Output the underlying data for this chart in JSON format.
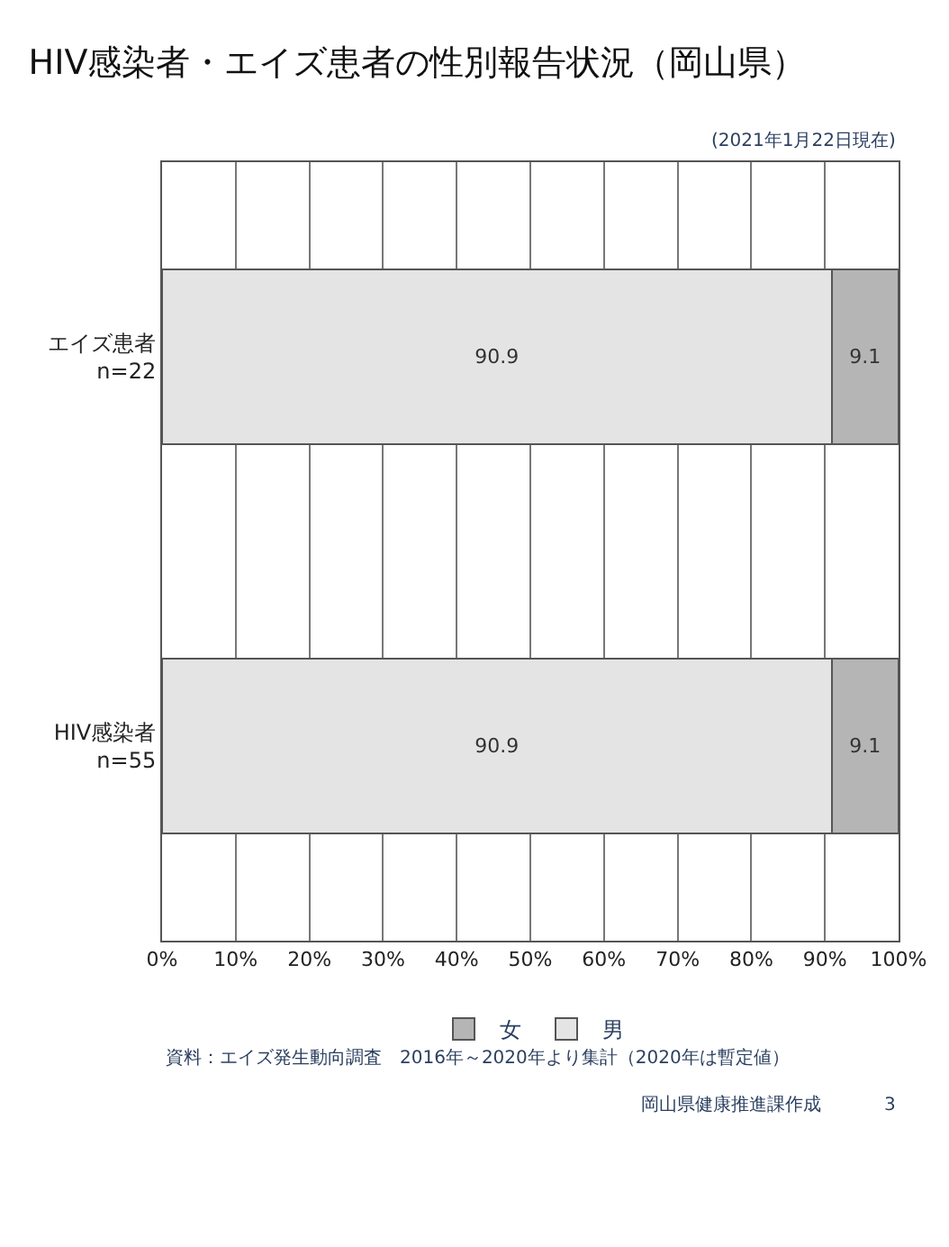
{
  "chart_data": {
    "type": "bar",
    "orientation": "horizontal",
    "stacked": true,
    "title": "HIV感染者・エイズ患者の性別報告状況（岡山県）",
    "subtitle": "(2021年1月22日現在)",
    "categories": [
      "エイズ患者\nn=22",
      "HIV感染者\nn=55"
    ],
    "series": [
      {
        "name": "男",
        "color": "#e4e4e4",
        "values": [
          90.9,
          90.9
        ]
      },
      {
        "name": "女",
        "color": "#b5b5b5",
        "values": [
          9.1,
          9.1
        ]
      }
    ],
    "data_labels": true,
    "xlim": [
      0,
      100
    ],
    "xticks": [
      {
        "value": 0,
        "label": "0%"
      },
      {
        "value": 10,
        "label": "10%"
      },
      {
        "value": 20,
        "label": "20%"
      },
      {
        "value": 30,
        "label": "30%"
      },
      {
        "value": 40,
        "label": "40%"
      },
      {
        "value": 50,
        "label": "50%"
      },
      {
        "value": 60,
        "label": "60%"
      },
      {
        "value": 70,
        "label": "70%"
      },
      {
        "value": 80,
        "label": "80%"
      },
      {
        "value": 90,
        "label": "90%"
      },
      {
        "value": 100,
        "label": "100%"
      }
    ],
    "grid": "x",
    "legend": "bottom",
    "annotations": [
      "資料：エイズ発生動向調査　2016年～2020年より集計（2020年は暫定値）",
      "岡山県健康推進課作成",
      "3"
    ]
  }
}
